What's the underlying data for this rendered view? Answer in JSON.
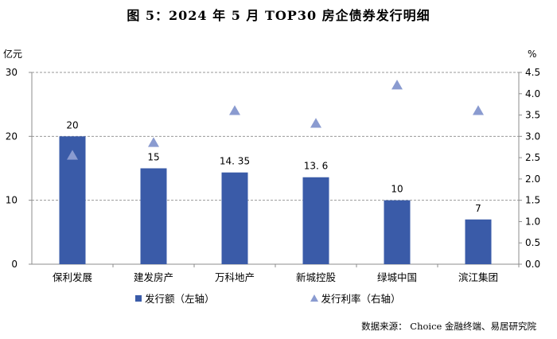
{
  "title": "图 5：2024 年 5 月 TOP30 房企债券发行明细",
  "source": "数据来源： Choice 金融终端、易居研究院",
  "chart_data": {
    "type": "bar",
    "categories": [
      "保利发展",
      "建发房产",
      "万科地产",
      "新城控股",
      "绿城中国",
      "滨江集团"
    ],
    "series": [
      {
        "name": "发行额（左轴）",
        "type": "bar",
        "axis": "left",
        "values": [
          20,
          15,
          14.35,
          13.6,
          10,
          7
        ],
        "labels": [
          "20",
          "15",
          "14. 35",
          "13. 6",
          "10",
          "7"
        ],
        "color": "#3A5BA8"
      },
      {
        "name": "发行利率（右轴）",
        "type": "scatter",
        "marker": "triangle",
        "axis": "right",
        "values": [
          2.55,
          2.85,
          3.6,
          3.3,
          4.2,
          3.6
        ],
        "color": "#8A9BD0"
      }
    ],
    "left_axis": {
      "unit": "亿元",
      "ylim": [
        0,
        30
      ],
      "ticks": [
        "0",
        "10",
        "20",
        "30"
      ]
    },
    "right_axis": {
      "unit": "%",
      "ylim": [
        0,
        4.5
      ],
      "ticks": [
        "0.0",
        "0.5",
        "1.0",
        "1.5",
        "2.0",
        "2.5",
        "3.0",
        "3.5",
        "4.0",
        "4.5"
      ]
    },
    "grid": true,
    "legend": "bottom"
  }
}
